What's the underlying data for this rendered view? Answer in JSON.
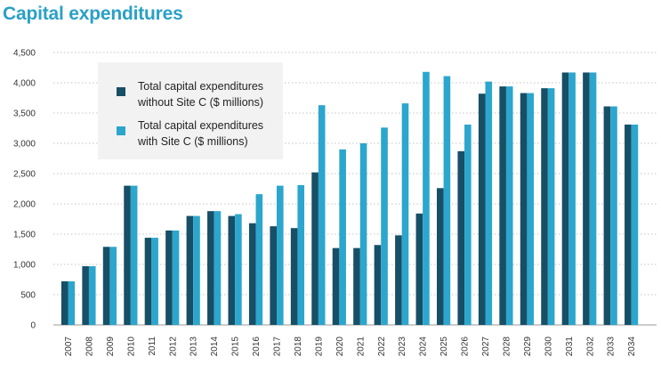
{
  "chart_data": {
    "type": "bar",
    "title": "Capital expenditures",
    "categories": [
      "2007",
      "2008",
      "2009",
      "2010",
      "2011",
      "2012",
      "2013",
      "2014",
      "2015",
      "2016",
      "2017",
      "2018",
      "2019",
      "2020",
      "2021",
      "2022",
      "2023",
      "2024",
      "2025",
      "2026",
      "2027",
      "2028",
      "2029",
      "2030",
      "2031",
      "2032",
      "2033",
      "2034"
    ],
    "series": [
      {
        "name": "Total capital expenditures without Site C ($ millions)",
        "legend_lines": [
          "Total capital expenditures",
          "without Site C ($ millions)"
        ],
        "color": "#174f66",
        "values": [
          720,
          970,
          1290,
          2300,
          1440,
          1560,
          1800,
          1880,
          1800,
          1680,
          1630,
          1600,
          2520,
          1270,
          1270,
          1320,
          1480,
          1840,
          2260,
          2870,
          3820,
          3940,
          3830,
          3910,
          4170,
          4170,
          3610,
          3310
        ]
      },
      {
        "name": "Total capital expenditures with Site C ($ millions)",
        "legend_lines": [
          "Total capital expenditures",
          "with Site C ($ millions)"
        ],
        "color": "#2ca6cd",
        "values": [
          720,
          970,
          1290,
          2300,
          1440,
          1560,
          1800,
          1880,
          1830,
          2160,
          2300,
          2310,
          3630,
          2900,
          3000,
          3260,
          3660,
          4180,
          4110,
          3310,
          4020,
          3940,
          3830,
          3910,
          4170,
          4170,
          3610,
          3310
        ]
      }
    ],
    "yticks": [
      0,
      500,
      1000,
      1500,
      2000,
      2500,
      3000,
      3500,
      4000,
      4500
    ],
    "ytick_labels": [
      "0",
      "500",
      "1,000",
      "1,500",
      "2,000",
      "2,500",
      "3,000",
      "3,500",
      "4,000",
      "4,500"
    ],
    "ylim": [
      0,
      4500
    ],
    "xlabel": "",
    "ylabel": "",
    "grid": true,
    "legend_position": "top-left"
  }
}
